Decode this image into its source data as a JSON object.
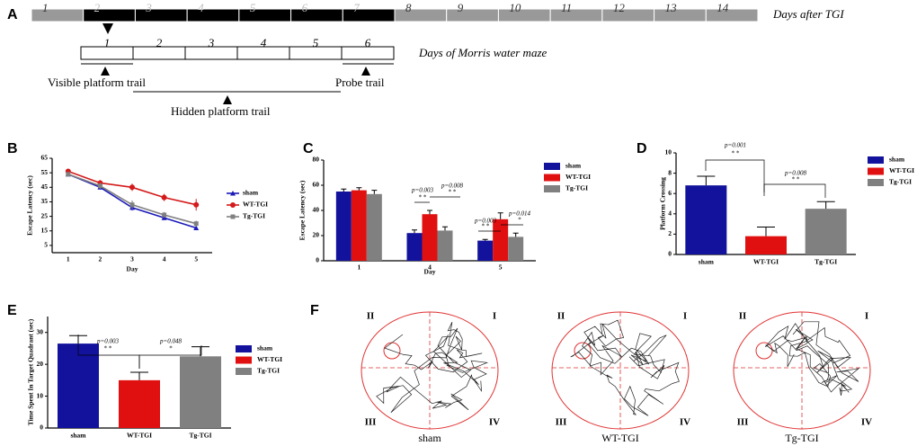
{
  "panel_labels": [
    "A",
    "B",
    "C",
    "D",
    "E",
    "F"
  ],
  "timeline": {
    "days": [
      "1",
      "2",
      "3",
      "4",
      "5",
      "6",
      "7",
      "8",
      "9",
      "10",
      "11",
      "12",
      "13",
      "14"
    ],
    "day_colors": [
      "#999999",
      "#000000",
      "#000000",
      "#000000",
      "#000000",
      "#000000",
      "#000000",
      "#999999",
      "#999999",
      "#999999",
      "#999999",
      "#999999",
      "#999999",
      "#999999"
    ],
    "days_label": "Days after TGI",
    "maze_days": [
      "1",
      "2",
      "3",
      "4",
      "5",
      "6"
    ],
    "maze_label": "Days of Morris water maze",
    "phases": [
      "Visible platform trail",
      "Hidden platform trail",
      "Probe trail"
    ]
  },
  "chart_data": [
    {
      "type": "line",
      "ylabel": "Escape Latency (sec)",
      "xlabel": "Day",
      "categories": [
        "1",
        "2",
        "3",
        "4",
        "5"
      ],
      "ylim": [
        0,
        65
      ],
      "yticks": [
        5,
        15,
        25,
        35,
        45,
        55,
        65
      ],
      "series": [
        {
          "name": "sham",
          "color": "#1a1ab8",
          "marker": "triangle",
          "values": [
            54,
            45,
            31,
            24,
            17
          ],
          "errors": [
            1,
            1.5,
            2,
            1.5,
            1
          ]
        },
        {
          "name": "WT-TGI",
          "color": "#d41a1a",
          "marker": "circle",
          "values": [
            56,
            48,
            45,
            38,
            33
          ],
          "errors": [
            1,
            2,
            2.5,
            2.5,
            4
          ]
        },
        {
          "name": "Tg-TGI",
          "color": "#808080",
          "marker": "square",
          "values": [
            54,
            46,
            33,
            26,
            20
          ],
          "errors": [
            1,
            2,
            3,
            2,
            2
          ]
        }
      ]
    },
    {
      "type": "grouped-bar",
      "ylabel": "Escape Latency (sec)",
      "xlabel": "Day",
      "categories": [
        "1",
        "4",
        "5"
      ],
      "ylim": [
        0,
        80
      ],
      "yticks": [
        0,
        20,
        40,
        60,
        80
      ],
      "series": [
        {
          "name": "sham",
          "color": "#12129c",
          "values": [
            55,
            22,
            16
          ],
          "errors": [
            2,
            2.5,
            1
          ]
        },
        {
          "name": "WT-TGI",
          "color": "#e01010",
          "values": [
            56,
            37,
            33
          ],
          "errors": [
            2,
            3,
            5
          ]
        },
        {
          "name": "Tg-TGI",
          "color": "#808080",
          "values": [
            53,
            24,
            19
          ],
          "errors": [
            3,
            3,
            3
          ]
        }
      ],
      "annotations": [
        {
          "text": "p=0.003",
          "stars": "* *"
        },
        {
          "text": "p=0.008",
          "stars": "* *"
        },
        {
          "text": "p=0.003",
          "stars": "* *"
        },
        {
          "text": "p=0.014",
          "stars": "*"
        }
      ]
    },
    {
      "type": "bar",
      "ylabel": "Platform Crossing",
      "categories": [
        "sham",
        "WT-TGI",
        "Tg-TGI"
      ],
      "values": [
        6.8,
        1.8,
        4.5
      ],
      "errors": [
        0.9,
        0.9,
        0.7
      ],
      "colors": [
        "#12129c",
        "#e01010",
        "#808080"
      ],
      "ylim": [
        0,
        10
      ],
      "yticks": [
        0,
        2,
        4,
        6,
        8,
        10
      ],
      "annotations": [
        {
          "text": "p=0.001",
          "stars": "* *"
        },
        {
          "text": "p=0.008",
          "stars": "* *"
        }
      ]
    },
    {
      "type": "bar",
      "ylabel": "Time Spent In Target Quadrant (sec)",
      "categories": [
        "sham",
        "WT-TGI",
        "Tg-TGI"
      ],
      "values": [
        26.5,
        15,
        22.5
      ],
      "errors": [
        2.5,
        2.5,
        3
      ],
      "colors": [
        "#12129c",
        "#e01010",
        "#808080"
      ],
      "ylim": [
        0,
        35
      ],
      "yticks": [
        0,
        10,
        20,
        30
      ],
      "annotations": [
        {
          "text": "p=0.003",
          "stars": "* *"
        },
        {
          "text": "p=0.048",
          "stars": "*"
        }
      ]
    }
  ],
  "swim_paths": {
    "groups": [
      "sham",
      "WT-TGI",
      "Tg-TGI"
    ],
    "quadrants": [
      "II",
      "I",
      "III",
      "IV"
    ]
  }
}
